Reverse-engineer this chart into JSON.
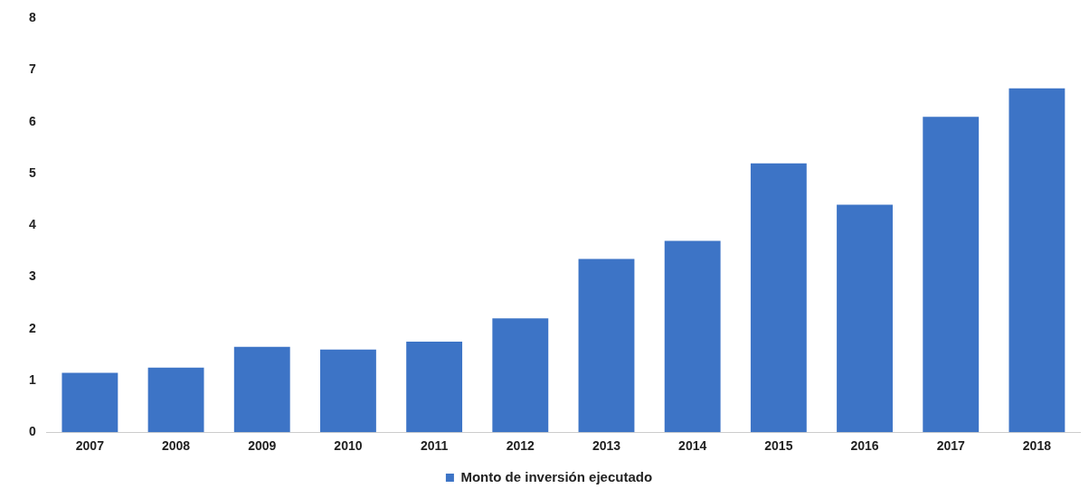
{
  "chart_data": {
    "type": "bar",
    "categories": [
      "2007",
      "2008",
      "2009",
      "2010",
      "2011",
      "2012",
      "2013",
      "2014",
      "2015",
      "2016",
      "2017",
      "2018"
    ],
    "series": [
      {
        "name": "Monto de inversión ejecutado",
        "color": "#3d74c6",
        "values": [
          1.15,
          1.25,
          1.65,
          1.6,
          1.75,
          2.2,
          3.35,
          3.7,
          5.2,
          4.4,
          6.1,
          6.65
        ]
      }
    ],
    "ylim": [
      0,
      8
    ],
    "yticks": [
      0,
      1,
      2,
      3,
      4,
      5,
      6,
      7,
      8
    ],
    "grid": false,
    "legend": "bottom"
  }
}
